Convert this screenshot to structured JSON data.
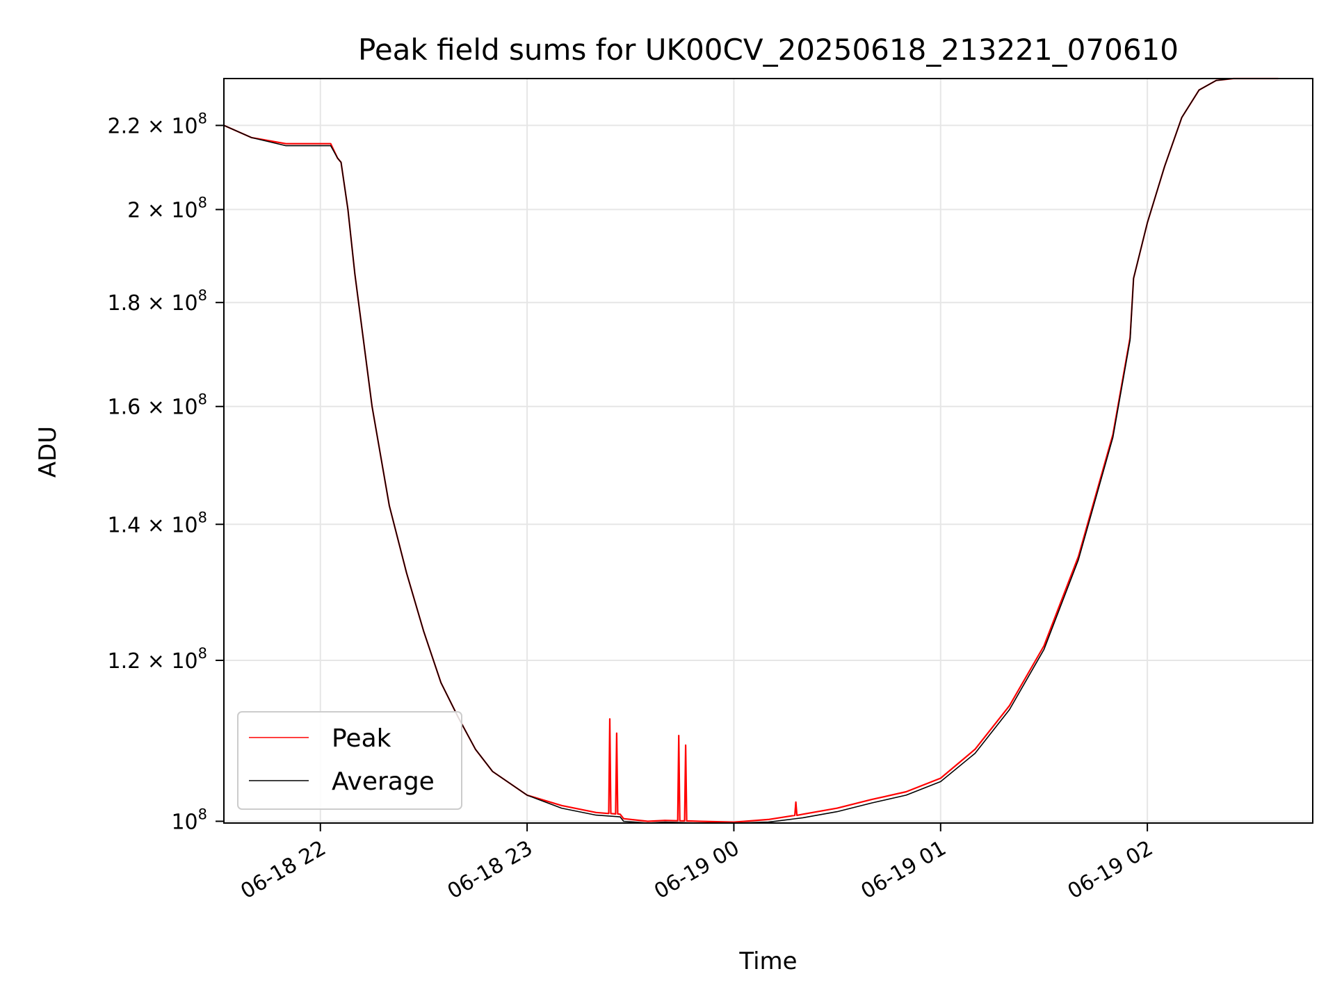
{
  "chart_data": {
    "type": "line",
    "title": "Peak field sums for UK00CV_20250618_213221_070610",
    "xlabel": "Time",
    "ylabel": "ADU",
    "yscale": "log",
    "grid": true,
    "legend_position": "lower-left",
    "xlim": [
      "2025-06-18 21:32",
      "2025-06-19 02:48"
    ],
    "ylim": [
      99800000,
      232000000
    ],
    "x_ticks": [
      {
        "value": "2025-06-18 22:00",
        "label": "06-18 22"
      },
      {
        "value": "2025-06-18 23:00",
        "label": "06-18 23"
      },
      {
        "value": "2025-06-19 00:00",
        "label": "06-19 00"
      },
      {
        "value": "2025-06-19 01:00",
        "label": "06-19 01"
      },
      {
        "value": "2025-06-19 02:00",
        "label": "06-19 02"
      }
    ],
    "y_ticks": [
      {
        "value": 100000000,
        "mantissa": "",
        "exponent": "8"
      },
      {
        "value": 120000000,
        "mantissa": "1.2",
        "exponent": "8"
      },
      {
        "value": 140000000,
        "mantissa": "1.4",
        "exponent": "8"
      },
      {
        "value": 160000000,
        "mantissa": "1.6",
        "exponent": "8"
      },
      {
        "value": 180000000,
        "mantissa": "1.8",
        "exponent": "8"
      },
      {
        "value": 200000000,
        "mantissa": "2",
        "exponent": "8"
      },
      {
        "value": 220000000,
        "mantissa": "2.2",
        "exponent": "8"
      }
    ],
    "times_sign": "×",
    "tick_base": "10",
    "x": [
      "2025-06-18 21:32",
      "2025-06-18 21:40",
      "2025-06-18 21:50",
      "2025-06-18 22:00",
      "2025-06-18 22:03",
      "2025-06-18 22:05",
      "2025-06-18 22:06",
      "2025-06-18 22:08",
      "2025-06-18 22:10",
      "2025-06-18 22:15",
      "2025-06-18 22:20",
      "2025-06-18 22:25",
      "2025-06-18 22:30",
      "2025-06-18 22:35",
      "2025-06-18 22:40",
      "2025-06-18 22:45",
      "2025-06-18 22:50",
      "2025-06-18 23:00",
      "2025-06-18 23:10",
      "2025-06-18 23:20",
      "2025-06-18 23:27",
      "2025-06-18 23:28",
      "2025-06-18 23:35",
      "2025-06-18 23:40",
      "2025-06-18 23:50",
      "2025-06-19 00:00",
      "2025-06-19 00:10",
      "2025-06-19 00:20",
      "2025-06-19 00:30",
      "2025-06-19 00:40",
      "2025-06-19 00:50",
      "2025-06-19 01:00",
      "2025-06-19 01:10",
      "2025-06-19 01:20",
      "2025-06-19 01:30",
      "2025-06-19 01:40",
      "2025-06-19 01:50",
      "2025-06-19 01:55",
      "2025-06-19 01:56",
      "2025-06-19 02:00",
      "2025-06-19 02:05",
      "2025-06-19 02:10",
      "2025-06-19 02:15",
      "2025-06-19 02:20",
      "2025-06-19 02:25",
      "2025-06-19 02:30",
      "2025-06-19 02:38"
    ],
    "series": [
      {
        "name": "Peak",
        "color": "#ff0000",
        "values": [
          220000000,
          217000000,
          215500000,
          215500000,
          215500000,
          212000000,
          211000000,
          200000000,
          186000000,
          160000000,
          143000000,
          132500000,
          124000000,
          117000000,
          112500000,
          108500000,
          105800000,
          103000000,
          101800000,
          101000000,
          100800000,
          100300000,
          100000000,
          100100000,
          100000000,
          99900000,
          100200000,
          100800000,
          101500000,
          102500000,
          103400000,
          105000000,
          108500000,
          114000000,
          122000000,
          135000000,
          155000000,
          173000000,
          185000000,
          197000000,
          210000000,
          222000000,
          229000000,
          231500000,
          232000000,
          232000000,
          232000000
        ],
        "spikes": [
          {
            "x": "2025-06-18 23:24",
            "value": 112300000
          },
          {
            "x": "2025-06-18 23:26",
            "value": 110500000
          },
          {
            "x": "2025-06-18 23:44",
            "value": 110200000
          },
          {
            "x": "2025-06-18 23:46",
            "value": 109000000
          },
          {
            "x": "2025-06-19 00:18",
            "value": 102200000
          }
        ]
      },
      {
        "name": "Average",
        "color": "#000000",
        "values": [
          220000000,
          217000000,
          215000000,
          215000000,
          215000000,
          212000000,
          211000000,
          200000000,
          186000000,
          160000000,
          143000000,
          132500000,
          124000000,
          117000000,
          112500000,
          108500000,
          105800000,
          103000000,
          101500000,
          100700000,
          100500000,
          100000000,
          99800000,
          99900000,
          99800000,
          99800000,
          99900000,
          100400000,
          101100000,
          102100000,
          103000000,
          104600000,
          108000000,
          113500000,
          121500000,
          134500000,
          154500000,
          172500000,
          185000000,
          197000000,
          210000000,
          222000000,
          229000000,
          231500000,
          232000000,
          232000000,
          232000000
        ]
      }
    ]
  }
}
